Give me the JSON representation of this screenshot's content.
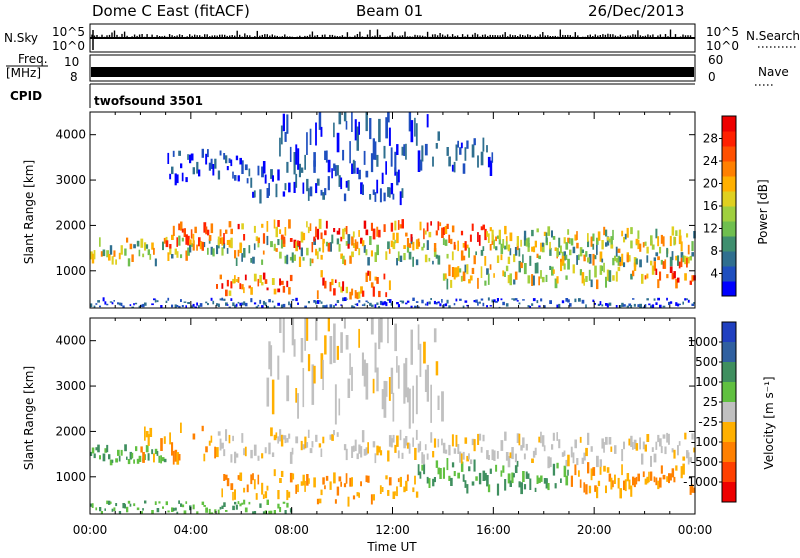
{
  "header": {
    "station": "Dome C East (fitACF)",
    "beam": "Beam 01",
    "date": "26/Dec/2013"
  },
  "strips": {
    "nsky": {
      "label": "N.Sky",
      "left_top": "10^5",
      "left_bottom": "10^0",
      "right_top": "10^5",
      "right_bottom": "10^0",
      "right_label": "N.Search"
    },
    "freq": {
      "label_line1": "Freq.",
      "label_line2": "[MHz]",
      "left_top": "10",
      "left_bottom": "8",
      "right_top": "60",
      "right_bottom": "0",
      "right_label": "Nave"
    },
    "cpid": {
      "label": "CPID",
      "text": "twofsound 3501"
    }
  },
  "chart_data": [
    {
      "type": "heatmap",
      "name": "power",
      "ylabel": "Slant Range [km]",
      "y_ticks": [
        "1000",
        "2000",
        "3000",
        "4000"
      ],
      "y_tick_values": [
        1000,
        2000,
        3000,
        4000
      ],
      "ylim": [
        180,
        4500
      ],
      "xlim": [
        0,
        24
      ],
      "colorbar": {
        "label": "Power [dB]",
        "ticks": [
          "4",
          "8",
          "12",
          "16",
          "20",
          "24",
          "28"
        ],
        "tick_values": [
          4,
          8,
          12,
          16,
          20,
          24,
          28
        ],
        "range": [
          0,
          32
        ],
        "colors": [
          "#0000ff",
          "#1f4fbf",
          "#2f6f8f",
          "#3f8f6f",
          "#6fbf4f",
          "#9fcf3f",
          "#dfd020",
          "#ffb000",
          "#ff8000",
          "#ff5000",
          "#ff2000",
          "#ee0000"
        ]
      },
      "bands": [
        {
          "t0": 0.0,
          "t1": 24.0,
          "r0": 1180,
          "r1": 1700,
          "level": "mid"
        },
        {
          "t0": 3.0,
          "t1": 16.0,
          "r0": 1500,
          "r1": 2050,
          "level": "high"
        },
        {
          "t0": 16.0,
          "t1": 24.0,
          "r0": 1400,
          "r1": 1900,
          "level": "mid"
        },
        {
          "t0": 22.0,
          "t1": 24.0,
          "r0": 700,
          "r1": 1200,
          "level": "high"
        },
        {
          "t0": 5.0,
          "t1": 8.0,
          "r0": 500,
          "r1": 900,
          "level": "high"
        },
        {
          "t0": 9.0,
          "t1": 12.0,
          "r0": 450,
          "r1": 950,
          "level": "high"
        },
        {
          "t0": 14.0,
          "t1": 22.0,
          "r0": 700,
          "r1": 1300,
          "level": "mid"
        },
        {
          "t0": 6.0,
          "t1": 12.5,
          "r0": 2600,
          "r1": 3300,
          "level": "low"
        },
        {
          "t0": 7.5,
          "t1": 13.5,
          "r0": 3300,
          "r1": 4500,
          "level": "low"
        },
        {
          "t0": 13.5,
          "t1": 16.0,
          "r0": 3200,
          "r1": 4000,
          "level": "low"
        },
        {
          "t0": 0.0,
          "t1": 24.0,
          "r0": 180,
          "r1": 380,
          "level": "low"
        },
        {
          "t0": 3.0,
          "t1": 6.0,
          "r0": 3000,
          "r1": 3600,
          "level": "low"
        }
      ]
    },
    {
      "type": "heatmap",
      "name": "velocity",
      "ylabel": "Slant Range [km]",
      "y_ticks": [
        "1000",
        "2000",
        "3000",
        "4000"
      ],
      "y_tick_values": [
        1000,
        2000,
        3000,
        4000
      ],
      "ylim": [
        180,
        4500
      ],
      "xlim": [
        0,
        24
      ],
      "colorbar": {
        "label": "Velocity [m s⁻¹]",
        "ticks": [
          "1000",
          "500",
          "100",
          "25",
          "-25",
          "-100",
          "-500",
          "-1000"
        ],
        "colors": [
          "#2040c0",
          "#3060a0",
          "#3f8f5f",
          "#60c040",
          "#c0c0c0",
          "#ffb000",
          "#ff8000",
          "#ff4000",
          "#ee0000"
        ]
      },
      "bands": [
        {
          "t0": 0.0,
          "t1": 3.0,
          "r0": 1250,
          "r1": 1650,
          "level": "green"
        },
        {
          "t0": 2.0,
          "t1": 5.0,
          "r0": 1400,
          "r1": 2100,
          "level": "orange"
        },
        {
          "t0": 5.0,
          "t1": 13.0,
          "r0": 1400,
          "r1": 2000,
          "level": "grey"
        },
        {
          "t0": 5.0,
          "t1": 9.0,
          "r0": 550,
          "r1": 1150,
          "level": "orange"
        },
        {
          "t0": 9.0,
          "t1": 13.0,
          "r0": 450,
          "r1": 1000,
          "level": "orange"
        },
        {
          "t0": 13.0,
          "t1": 19.0,
          "r0": 700,
          "r1": 1300,
          "level": "green"
        },
        {
          "t0": 19.0,
          "t1": 24.0,
          "r0": 600,
          "r1": 1200,
          "level": "orange"
        },
        {
          "t0": 13.0,
          "t1": 24.0,
          "r0": 1300,
          "r1": 1900,
          "level": "grey"
        },
        {
          "t0": 7.0,
          "t1": 14.0,
          "r0": 2500,
          "r1": 4500,
          "level": "grey"
        },
        {
          "t0": 0.0,
          "t1": 8.0,
          "r0": 180,
          "r1": 450,
          "level": "green"
        }
      ]
    }
  ],
  "time_axis": {
    "label": "Time UT",
    "ticks": [
      "00:00",
      "04:00",
      "08:00",
      "12:00",
      "16:00",
      "20:00",
      "00:00"
    ],
    "tick_values": [
      0,
      4,
      8,
      12,
      16,
      20,
      24
    ]
  }
}
